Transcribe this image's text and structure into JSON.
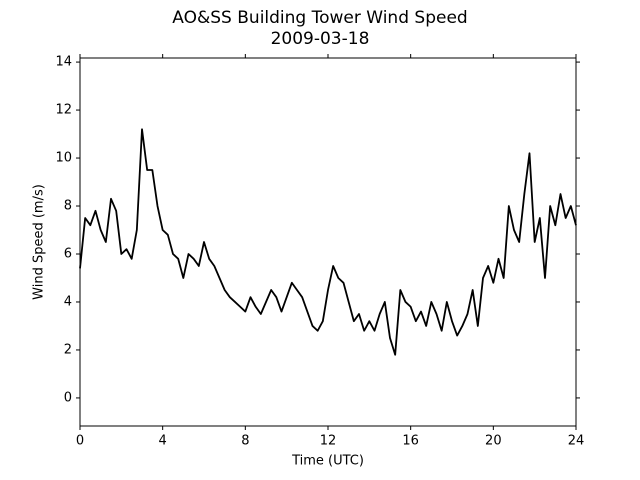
{
  "chart_data": {
    "type": "line",
    "title": "AO&SS Building Tower Wind Speed",
    "subtitle": "2009-03-18",
    "xlabel": "Time (UTC)",
    "ylabel": "Wind Speed (m/s)",
    "x": [
      0,
      0.25,
      0.5,
      0.75,
      1,
      1.25,
      1.5,
      1.75,
      2,
      2.25,
      2.5,
      2.75,
      3,
      3.25,
      3.5,
      3.75,
      4,
      4.25,
      4.5,
      4.75,
      5,
      5.25,
      5.5,
      5.75,
      6,
      6.25,
      6.5,
      6.75,
      7,
      7.25,
      7.5,
      7.75,
      8,
      8.25,
      8.5,
      8.75,
      9,
      9.25,
      9.5,
      9.75,
      10,
      10.25,
      10.5,
      10.75,
      11,
      11.25,
      11.5,
      11.75,
      12,
      12.25,
      12.5,
      12.75,
      13,
      13.25,
      13.5,
      13.75,
      14,
      14.25,
      14.5,
      14.75,
      15,
      15.25,
      15.5,
      15.75,
      16,
      16.25,
      16.5,
      16.75,
      17,
      17.25,
      17.5,
      17.75,
      18,
      18.25,
      18.5,
      18.75,
      19,
      19.25,
      19.5,
      19.75,
      20,
      20.25,
      20.5,
      20.75,
      21,
      21.25,
      21.5,
      21.75,
      22,
      22.25,
      22.5,
      22.75,
      23,
      23.25,
      23.5,
      23.75,
      24
    ],
    "series": [
      {
        "name": "Wind Speed",
        "color": "#000000",
        "values": [
          5.4,
          7.5,
          7.2,
          7.8,
          7.0,
          6.5,
          8.3,
          7.8,
          6.0,
          6.2,
          5.8,
          7.0,
          11.2,
          9.5,
          9.5,
          8.0,
          7.0,
          6.8,
          6.0,
          5.8,
          5.0,
          6.0,
          5.8,
          5.5,
          6.5,
          5.8,
          5.5,
          5.0,
          4.5,
          4.2,
          4.0,
          3.8,
          3.6,
          4.2,
          3.8,
          3.5,
          4.0,
          4.5,
          4.2,
          3.6,
          4.2,
          4.8,
          4.5,
          4.2,
          3.6,
          3.0,
          2.8,
          3.2,
          4.5,
          5.5,
          5.0,
          4.8,
          4.0,
          3.2,
          3.5,
          2.8,
          3.2,
          2.8,
          3.5,
          4.0,
          2.5,
          1.8,
          4.5,
          4.0,
          3.8,
          3.2,
          3.6,
          3.0,
          4.0,
          3.5,
          2.8,
          4.0,
          3.2,
          2.6,
          3.0,
          3.5,
          4.5,
          3.0,
          5.0,
          5.5,
          4.8,
          5.8,
          5.0,
          8.0,
          7.0,
          6.5,
          8.5,
          10.2,
          6.5,
          7.5,
          5.0,
          8.0,
          7.2,
          8.5,
          7.5,
          8.0,
          7.2
        ]
      }
    ],
    "xlim": [
      0,
      24
    ],
    "xticks": [
      0,
      4,
      8,
      12,
      16,
      20,
      24
    ],
    "ylim": [
      -1.17,
      14.17
    ],
    "yticks": [
      0,
      2,
      4,
      6,
      8,
      10,
      12,
      14
    ],
    "grid": false
  }
}
